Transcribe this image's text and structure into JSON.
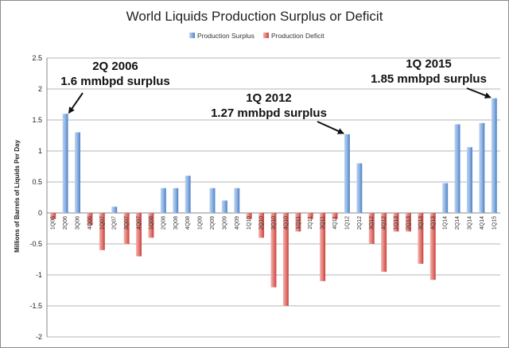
{
  "chart_data": {
    "type": "bar",
    "title": "World Liquids Production Surplus or Deficit",
    "ylabel": "Millions of Barrels of Liquids Per Day",
    "xlabel": "",
    "ylim": [
      -2,
      2.5
    ],
    "yticks": [
      "-2",
      "-1.5",
      "-1",
      "-0.5",
      "0",
      "0.5",
      "1",
      "1.5",
      "2",
      "2.5"
    ],
    "grid": true,
    "legend_position": "top",
    "legend": [
      {
        "label": "Production Surplus",
        "color": "#5b8fd0"
      },
      {
        "label": "Production Deficit",
        "color": "#d9534f"
      }
    ],
    "categories": [
      "1Q06",
      "2Q06",
      "3Q06",
      "4Q06",
      "1Q07",
      "2Q07",
      "3Q07",
      "4Q07",
      "1Q08",
      "2Q08",
      "3Q08",
      "4Q08",
      "1Q09",
      "2Q09",
      "3Q09",
      "4Q09",
      "1Q10",
      "2Q10",
      "3Q10",
      "4Q10",
      "1Q11",
      "2Q11",
      "3Q11",
      "4Q11",
      "1Q12",
      "2Q12",
      "3Q12",
      "4Q12",
      "1Q13",
      "2Q13",
      "3Q13",
      "4Q13",
      "1Q14",
      "2Q14",
      "3Q14",
      "4Q14",
      "1Q15"
    ],
    "values": [
      -0.1,
      1.6,
      1.3,
      -0.2,
      -0.6,
      0.1,
      -0.5,
      -0.7,
      -0.4,
      0.4,
      0.4,
      0.6,
      0.0,
      0.4,
      0.2,
      0.4,
      -0.1,
      -0.4,
      -1.2,
      -1.5,
      -0.3,
      -0.1,
      -1.1,
      -0.1,
      1.27,
      0.8,
      -0.5,
      -0.95,
      -0.3,
      -0.3,
      -0.82,
      -1.08,
      0.48,
      1.43,
      1.06,
      1.45,
      1.85
    ],
    "annotations": [
      {
        "lines": [
          "2Q 2006",
          "1.6 mmbpd surplus"
        ],
        "category": "2Q06",
        "value": 1.6
      },
      {
        "lines": [
          "1Q 2012",
          "1.27 mmbpd surplus"
        ],
        "category": "1Q12",
        "value": 1.27
      },
      {
        "lines": [
          "1Q 2015",
          "1.85 mmbpd surplus"
        ],
        "category": "1Q15",
        "value": 1.85
      }
    ]
  }
}
